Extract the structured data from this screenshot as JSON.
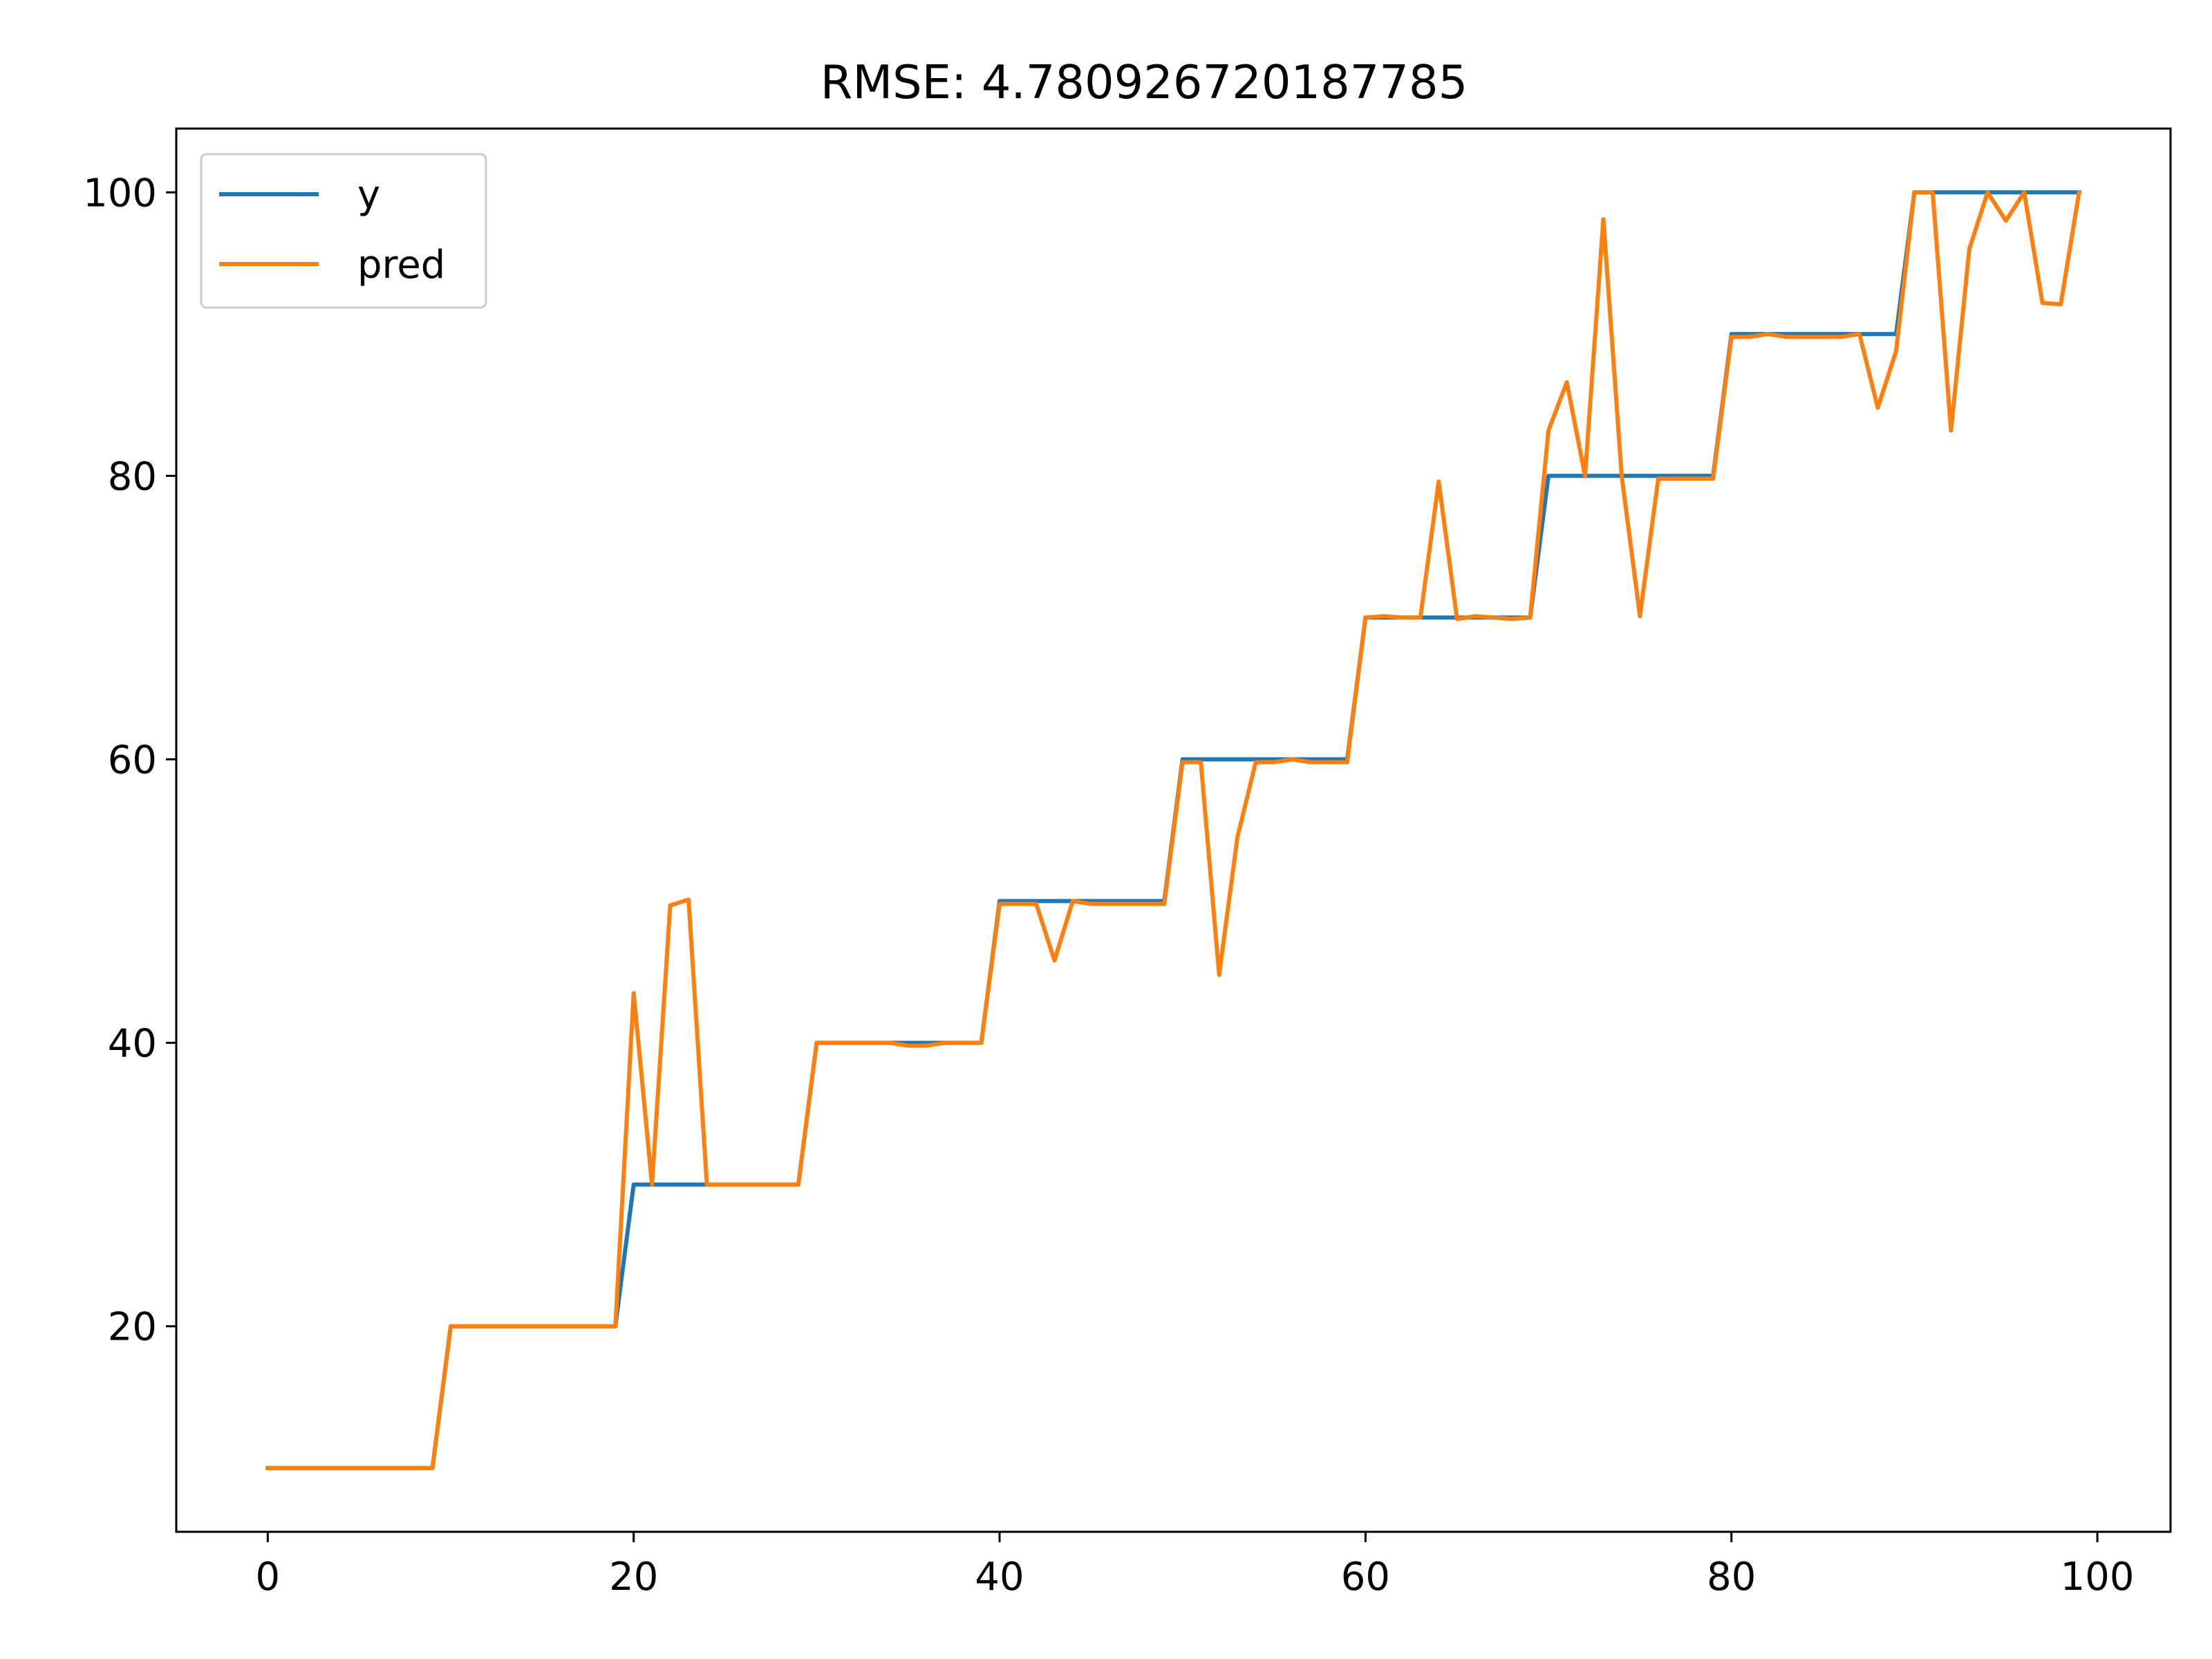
{
  "chart_data": {
    "type": "line",
    "title": "RMSE: 4.780926720187785",
    "xlabel": "",
    "ylabel": "",
    "xlim": [
      -5,
      104
    ],
    "ylim": [
      5.5,
      104.5
    ],
    "xticks": [
      0,
      20,
      40,
      60,
      80,
      100
    ],
    "yticks": [
      20,
      40,
      60,
      80,
      100
    ],
    "grid": false,
    "legend": {
      "position": "upper-left",
      "entries": [
        "y",
        "pred"
      ]
    },
    "x": [
      0,
      1,
      2,
      3,
      4,
      5,
      6,
      7,
      8,
      9,
      10,
      11,
      12,
      13,
      14,
      15,
      16,
      17,
      18,
      19,
      20,
      21,
      22,
      23,
      24,
      25,
      26,
      27,
      28,
      29,
      30,
      31,
      32,
      33,
      34,
      35,
      36,
      37,
      38,
      39,
      40,
      41,
      42,
      43,
      44,
      45,
      46,
      47,
      48,
      49,
      50,
      51,
      52,
      53,
      54,
      55,
      56,
      57,
      58,
      59,
      60,
      61,
      62,
      63,
      64,
      65,
      66,
      67,
      68,
      69,
      70,
      71,
      72,
      73,
      74,
      75,
      76,
      77,
      78,
      79,
      80,
      81,
      82,
      83,
      84,
      85,
      86,
      87,
      88,
      89,
      90,
      91,
      92,
      93,
      94,
      95,
      96,
      97,
      98,
      99
    ],
    "series": [
      {
        "name": "y",
        "color": "#1f77b4",
        "values": [
          10,
          10,
          10,
          10,
          10,
          10,
          10,
          10,
          10,
          10,
          20,
          20,
          20,
          20,
          20,
          20,
          20,
          20,
          20,
          20,
          30,
          30,
          30,
          30,
          30,
          30,
          30,
          30,
          30,
          30,
          40,
          40,
          40,
          40,
          40,
          40,
          40,
          40,
          40,
          40,
          50,
          50,
          50,
          50,
          50,
          50,
          50,
          50,
          50,
          50,
          60,
          60,
          60,
          60,
          60,
          60,
          60,
          60,
          60,
          60,
          70,
          70,
          70,
          70,
          70,
          70,
          70,
          70,
          70,
          70,
          80,
          80,
          80,
          80,
          80,
          80,
          80,
          80,
          80,
          80,
          90,
          90,
          90,
          90,
          90,
          90,
          90,
          90,
          90,
          90,
          100,
          100,
          100,
          100,
          100,
          100,
          100,
          100,
          100,
          100
        ]
      },
      {
        "name": "pred",
        "color": "#ff7f0e",
        "values": [
          10,
          10,
          10,
          10,
          10,
          10,
          10,
          10,
          10,
          10,
          20,
          20,
          20,
          20,
          20,
          20,
          20,
          20,
          20,
          20,
          43.5,
          30,
          49.7,
          50.1,
          30,
          30,
          30,
          30,
          30,
          30,
          40,
          40,
          40,
          40,
          40,
          39.8,
          39.8,
          40,
          40,
          40,
          49.8,
          49.8,
          49.8,
          45.8,
          50,
          49.8,
          49.8,
          49.8,
          49.8,
          49.8,
          59.8,
          59.8,
          44.8,
          54.5,
          59.8,
          59.8,
          60,
          59.8,
          59.8,
          59.8,
          70,
          70.1,
          70,
          70,
          79.6,
          69.9,
          70.1,
          70,
          69.9,
          70,
          83.2,
          86.6,
          80,
          98.1,
          80,
          70.1,
          79.8,
          79.8,
          79.8,
          79.8,
          89.8,
          89.8,
          90,
          89.8,
          89.8,
          89.8,
          89.8,
          90,
          84.8,
          88.8,
          100,
          100,
          83.2,
          96,
          100,
          98,
          100,
          92.2,
          92.1,
          100
        ]
      }
    ]
  }
}
